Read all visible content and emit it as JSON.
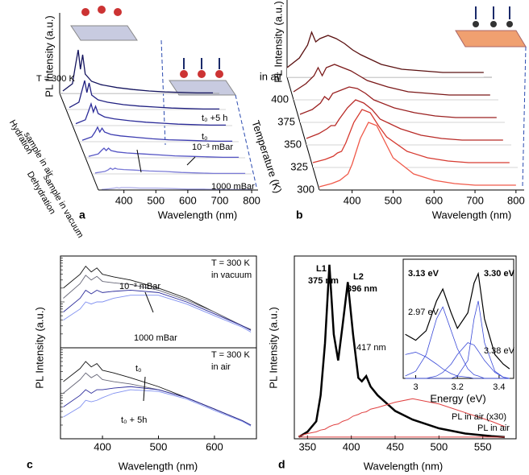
{
  "chart_data": [
    {
      "type": "waterfall",
      "panel": "a",
      "ylabel": "PL Intensity (a.u.)",
      "xlabel": "Wavelength (nm)",
      "xlim": [
        320,
        820
      ],
      "xticks": [
        400,
        500,
        600,
        700,
        800
      ],
      "ylim": [
        0,
        10
      ],
      "x": [
        330,
        360,
        370,
        378,
        385,
        392,
        400,
        420,
        450,
        500,
        550,
        600,
        650,
        700,
        750,
        800
      ],
      "series": [
        {
          "color": "#14145e",
          "values": [
            0.5,
            2,
            6,
            9,
            5,
            8,
            4,
            2.5,
            1.8,
            1.2,
            0.8,
            0.5,
            0.3,
            0.2,
            0.1,
            0.1
          ]
        },
        {
          "color": "#1f1f80",
          "values": [
            0.4,
            1.5,
            4,
            6,
            3.5,
            5.5,
            3,
            2,
            1.5,
            1,
            0.7,
            0.5,
            0.3,
            0.2,
            0.1,
            0.1
          ]
        },
        {
          "color": "#2b2b98",
          "values": [
            0.4,
            1.2,
            3,
            4.5,
            2.8,
            4,
            2.5,
            1.8,
            1.4,
            1,
            0.7,
            0.5,
            0.3,
            0.2,
            0.1,
            0.1
          ]
        },
        {
          "color": "#3c3cb0",
          "values": [
            0.3,
            1,
            2,
            3,
            2,
            2.8,
            2,
            1.5,
            1.2,
            0.9,
            0.6,
            0.4,
            0.3,
            0.2,
            0.1,
            0.1
          ]
        },
        {
          "color": "#5454c4",
          "values": [
            0.3,
            0.8,
            1.5,
            2,
            1.5,
            2,
            1.5,
            1.2,
            1,
            0.8,
            0.6,
            0.4,
            0.3,
            0.2,
            0.1,
            0.1
          ]
        },
        {
          "color": "#7a7ad6",
          "values": [
            0.2,
            0.5,
            0.8,
            1.2,
            0.9,
            1.2,
            1,
            0.9,
            0.8,
            0.6,
            0.5,
            0.3,
            0.2,
            0.1,
            0.1,
            0.1
          ]
        },
        {
          "color": "#adadea",
          "values": [
            0.1,
            0.3,
            0.4,
            0.5,
            0.4,
            0.5,
            0.5,
            0.5,
            0.4,
            0.4,
            0.3,
            0.2,
            0.2,
            0.1,
            0.1,
            0.1
          ]
        }
      ],
      "annotations": [
        {
          "text": "T = 300 K",
          "color": "#000000"
        },
        {
          "text": "t₀ +5 h",
          "color": "#000000"
        },
        {
          "text": "t₀",
          "color": "#000000"
        },
        {
          "text": "10⁻³ mBar",
          "color": "#000000"
        },
        {
          "text": "1000 mBar",
          "color": "#000000"
        },
        {
          "text": "Hydration",
          "color": "#000000"
        },
        {
          "text": "sample in air",
          "color": "#000000"
        },
        {
          "text": "Dehydration",
          "color": "#000000"
        },
        {
          "text": "sample in vacuum",
          "color": "#000000"
        }
      ]
    },
    {
      "type": "waterfall",
      "panel": "b",
      "ylabel": "PL Intensity (a.u.)",
      "xlabel": "Wavelength (nm)",
      "zlabel": "Temperature (K)",
      "xlim": [
        320,
        820
      ],
      "xticks": [
        400,
        500,
        600,
        700,
        800
      ],
      "ylim": [
        0,
        8
      ],
      "x": [
        320,
        350,
        370,
        380,
        390,
        400,
        420,
        440,
        460,
        480,
        500,
        550,
        600,
        650,
        700,
        750,
        800
      ],
      "series": [
        {
          "name": "in air",
          "color": "#5a1010",
          "values": [
            0.6,
            1.2,
            2,
            2.8,
            2.2,
            2.4,
            2.6,
            2.4,
            2.1,
            1.7,
            1.4,
            0.8,
            0.5,
            0.4,
            0.3,
            0.3,
            0.3
          ]
        },
        {
          "name": "400",
          "color": "#7a1818",
          "values": [
            0.5,
            1,
            1.5,
            2,
            1.5,
            2,
            2.2,
            2,
            1.8,
            1.5,
            1.2,
            0.8,
            0.5,
            0.4,
            0.3,
            0.3,
            0.3
          ]
        },
        {
          "name": "375",
          "color": "#9a2020",
          "values": [
            0.5,
            0.8,
            1.2,
            1.6,
            1.4,
            1.8,
            2,
            2.2,
            2.1,
            1.8,
            1.4,
            0.9,
            0.6,
            0.4,
            0.3,
            0.3,
            0.3
          ]
        },
        {
          "name": "350",
          "color": "#b82a26",
          "values": [
            0.4,
            0.7,
            1,
            1.2,
            1.2,
            1.6,
            2.3,
            2.8,
            2.6,
            2.2,
            1.6,
            1,
            0.6,
            0.4,
            0.3,
            0.3,
            0.3
          ]
        },
        {
          "name": "325",
          "color": "#d63a30",
          "values": [
            0.3,
            0.5,
            0.7,
            0.9,
            1,
            1.5,
            2.8,
            3.6,
            3.4,
            2.6,
            1.9,
            1,
            0.6,
            0.4,
            0.3,
            0.3,
            0.3
          ]
        },
        {
          "name": "300",
          "color": "#f05a4a",
          "values": [
            0.2,
            0.4,
            0.6,
            0.8,
            1,
            1.6,
            3.2,
            4.2,
            4,
            3,
            2,
            1,
            0.6,
            0.4,
            0.3,
            0.3,
            0.3
          ]
        }
      ]
    },
    {
      "type": "line",
      "log": true,
      "xlim": [
        325,
        675
      ],
      "ylim": [
        1,
        100
      ],
      "x": [
        330,
        360,
        370,
        380,
        390,
        400,
        420,
        450,
        500,
        550,
        600,
        650,
        665
      ],
      "series": [
        {
          "color": "#111111",
          "values": [
            20,
            40,
            60,
            45,
            55,
            40,
            35,
            30,
            20,
            12,
            6,
            3,
            2.5
          ]
        },
        {
          "color": "#666677",
          "values": [
            12,
            25,
            38,
            30,
            36,
            28,
            26,
            24,
            18,
            11,
            6,
            3,
            2.5
          ]
        },
        {
          "color": "#2a2a9a",
          "values": [
            6,
            12,
            18,
            15,
            18,
            16,
            17,
            18,
            16,
            10,
            5.5,
            3,
            2.4
          ]
        },
        {
          "color": "#7f8ff0",
          "values": [
            4,
            7,
            10,
            9,
            10,
            10,
            12,
            14,
            14,
            9,
            5,
            2.8,
            2.2
          ]
        }
      ],
      "annotations": [
        {
          "text": "T = 300 K",
          "color": "#000000"
        },
        {
          "text": "in vacuum",
          "color": "#000000"
        },
        {
          "text": "10⁻³ mBar",
          "color": "#1a1a80"
        },
        {
          "text": "1000 mBar",
          "color": "#3a4ad8"
        }
      ]
    },
    {
      "type": "line",
      "panel": "c",
      "log": true,
      "ylabel": "PL Intensity (a.u.)",
      "xlabel": "Wavelength (nm)",
      "xlim": [
        325,
        675
      ],
      "xticks": [
        400,
        500,
        600
      ],
      "ylim": [
        1,
        100
      ],
      "x": [
        330,
        360,
        370,
        380,
        390,
        400,
        420,
        450,
        500,
        550,
        600,
        650,
        665
      ],
      "series": [
        {
          "color": "#111111",
          "values": [
            18,
            35,
            50,
            38,
            45,
            32,
            28,
            22,
            14,
            8,
            4.5,
            2.5,
            2
          ]
        },
        {
          "color": "#666677",
          "values": [
            10,
            20,
            28,
            22,
            26,
            20,
            18,
            16,
            12,
            8,
            4.5,
            2.5,
            2
          ]
        },
        {
          "color": "#2a2a9a",
          "values": [
            5,
            9,
            12,
            10,
            12,
            12,
            13,
            14,
            12,
            8,
            4.5,
            2.5,
            2
          ]
        },
        {
          "color": "#7f8ff0",
          "values": [
            3,
            5,
            7,
            6.5,
            7,
            8,
            10,
            12,
            11,
            7.5,
            4.2,
            2.4,
            1.9
          ]
        }
      ],
      "annotations": [
        {
          "text": "T = 300 K",
          "color": "#000000"
        },
        {
          "text": "in air",
          "color": "#000000"
        },
        {
          "text": "t₀",
          "color": "#1a1a80"
        },
        {
          "text": "t₀ + 5h",
          "color": "#3a4ad8"
        }
      ]
    },
    {
      "type": "line",
      "panel": "d",
      "ylabel": "PL Intensity (a.u.)",
      "xlabel": "Wavelength (nm)",
      "xlim": [
        335,
        588
      ],
      "xticks": [
        350,
        400,
        450,
        500,
        550
      ],
      "ylim": [
        0,
        10.5
      ],
      "x": [
        340,
        350,
        360,
        365,
        370,
        375,
        380,
        385,
        390,
        396,
        402,
        408,
        412,
        417,
        422,
        430,
        450,
        470,
        500,
        530,
        560,
        575
      ],
      "series": [
        {
          "color": "#000000",
          "width": 2.5,
          "values": [
            0.1,
            0.4,
            1,
            2.5,
            5.5,
            10,
            6,
            4.5,
            6.5,
            9,
            6,
            3.5,
            3.3,
            3.6,
            3,
            2.5,
            1.6,
            1.1,
            0.6,
            0.3,
            0.15,
            0.1
          ]
        },
        {
          "color": "#e04040",
          "width": 1,
          "values": [
            0.15,
            0.3,
            0.4,
            0.5,
            0.55,
            0.7,
            0.8,
            0.85,
            1,
            1.1,
            1.3,
            1.4,
            1.5,
            1.55,
            1.7,
            1.8,
            2.1,
            2.3,
            2,
            1.5,
            1,
            0.7
          ]
        },
        {
          "color": "#e04040",
          "width": 1,
          "values": [
            0.1,
            0.1,
            0.1,
            0.1,
            0.1,
            0.1,
            0.1,
            0.1,
            0.1,
            0.1,
            0.1,
            0.1,
            0.1,
            0.1,
            0.1,
            0.1,
            0.1,
            0.1,
            0.1,
            0.1,
            0.1,
            0.1
          ]
        }
      ],
      "annotations": [
        {
          "text": "L1",
          "color": "#000000"
        },
        {
          "text": "375 nm",
          "color": "#000000"
        },
        {
          "text": "L2",
          "color": "#000000"
        },
        {
          "text": "396 nm",
          "color": "#000000"
        },
        {
          "text": "417 nm",
          "color": "#000000"
        },
        {
          "text": "PL in air (x30)",
          "color": "#e04040"
        },
        {
          "text": "PL in air",
          "color": "#e04040"
        }
      ]
    },
    {
      "type": "line",
      "xlabel": "Energy (eV)",
      "xlim": [
        2.94,
        3.47
      ],
      "xticks": [
        3.0,
        3.2,
        3.4
      ],
      "ylim": [
        0,
        10
      ],
      "x": [
        2.95,
        3.0,
        3.05,
        3.1,
        3.13,
        3.17,
        3.2,
        3.25,
        3.28,
        3.3,
        3.33,
        3.38,
        3.42,
        3.45
      ],
      "series": [
        {
          "color": "#000000",
          "width": 1.2,
          "values": [
            3.7,
            3.2,
            4,
            6.5,
            7.5,
            5.5,
            4.2,
            5.5,
            8,
            8.8,
            5,
            2,
            1.2,
            0.8
          ]
        },
        {
          "color": "#3a4ad8",
          "width": 0.8,
          "values": [
            2,
            2.2,
            1.8,
            1.2,
            0.8,
            0.4,
            0.2,
            0.1,
            0,
            0,
            0,
            0,
            0,
            0
          ]
        },
        {
          "color": "#3a4ad8",
          "width": 0.8,
          "values": [
            0.2,
            0.6,
            2,
            5,
            6,
            4,
            2.5,
            0.8,
            0.3,
            0.2,
            0,
            0,
            0,
            0
          ]
        },
        {
          "color": "#3a4ad8",
          "width": 0.8,
          "values": [
            0,
            0,
            0,
            0.2,
            0.5,
            1.2,
            2,
            3,
            2.8,
            2.3,
            1.5,
            0.5,
            0.1,
            0
          ]
        },
        {
          "color": "#3a4ad8",
          "width": 0.8,
          "values": [
            0,
            0,
            0,
            0,
            0,
            0,
            0.2,
            1.5,
            5,
            6.5,
            3,
            0.6,
            0.1,
            0
          ]
        }
      ],
      "annotations": [
        {
          "text": "3.13 eV",
          "color": "#000000"
        },
        {
          "text": "3.30 eV",
          "color": "#000000"
        },
        {
          "text": "2.97 eV",
          "color": "#000000"
        },
        {
          "text": "3.38 eV",
          "color": "#000000"
        }
      ]
    }
  ]
}
